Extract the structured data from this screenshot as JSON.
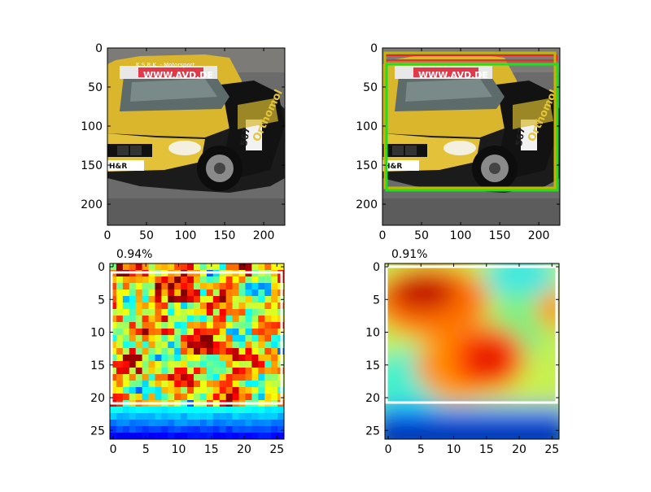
{
  "panels": [
    {
      "name": "original-image",
      "x_ticks": [
        "0",
        "50",
        "100",
        "150",
        "200"
      ],
      "y_ticks": [
        "0",
        "50",
        "100",
        "150",
        "200"
      ],
      "car": {
        "banner_text": "WWW.AVD.DE",
        "number": "567",
        "plate": "H&R",
        "side_text": "Orthomol",
        "roof_text": "K.S.R.K. - Motorsport"
      }
    },
    {
      "name": "boxed-image",
      "x_ticks": [
        "0",
        "50",
        "100",
        "150",
        "200"
      ],
      "y_ticks": [
        "0",
        "50",
        "100",
        "150",
        "200"
      ],
      "boxes": [
        {
          "label": "yellow-box",
          "color": "#c8b400"
        },
        {
          "label": "green-box",
          "color": "#22dd22"
        },
        {
          "label": "red-box",
          "color": "#ee2222"
        }
      ]
    },
    {
      "name": "heatmap-left",
      "score": "0.94%",
      "x_ticks": [
        "0",
        "5",
        "10",
        "15",
        "20",
        "25"
      ],
      "y_ticks": [
        "0",
        "5",
        "10",
        "15",
        "20",
        "25"
      ]
    },
    {
      "name": "heatmap-right",
      "score": "0.91%",
      "x_ticks": [
        "0",
        "5",
        "10",
        "15",
        "20",
        "25"
      ],
      "y_ticks": [
        "0",
        "5",
        "10",
        "15",
        "20",
        "25"
      ]
    }
  ],
  "colors": {
    "bounding_box": "#ffffff",
    "axes": "#000000"
  }
}
